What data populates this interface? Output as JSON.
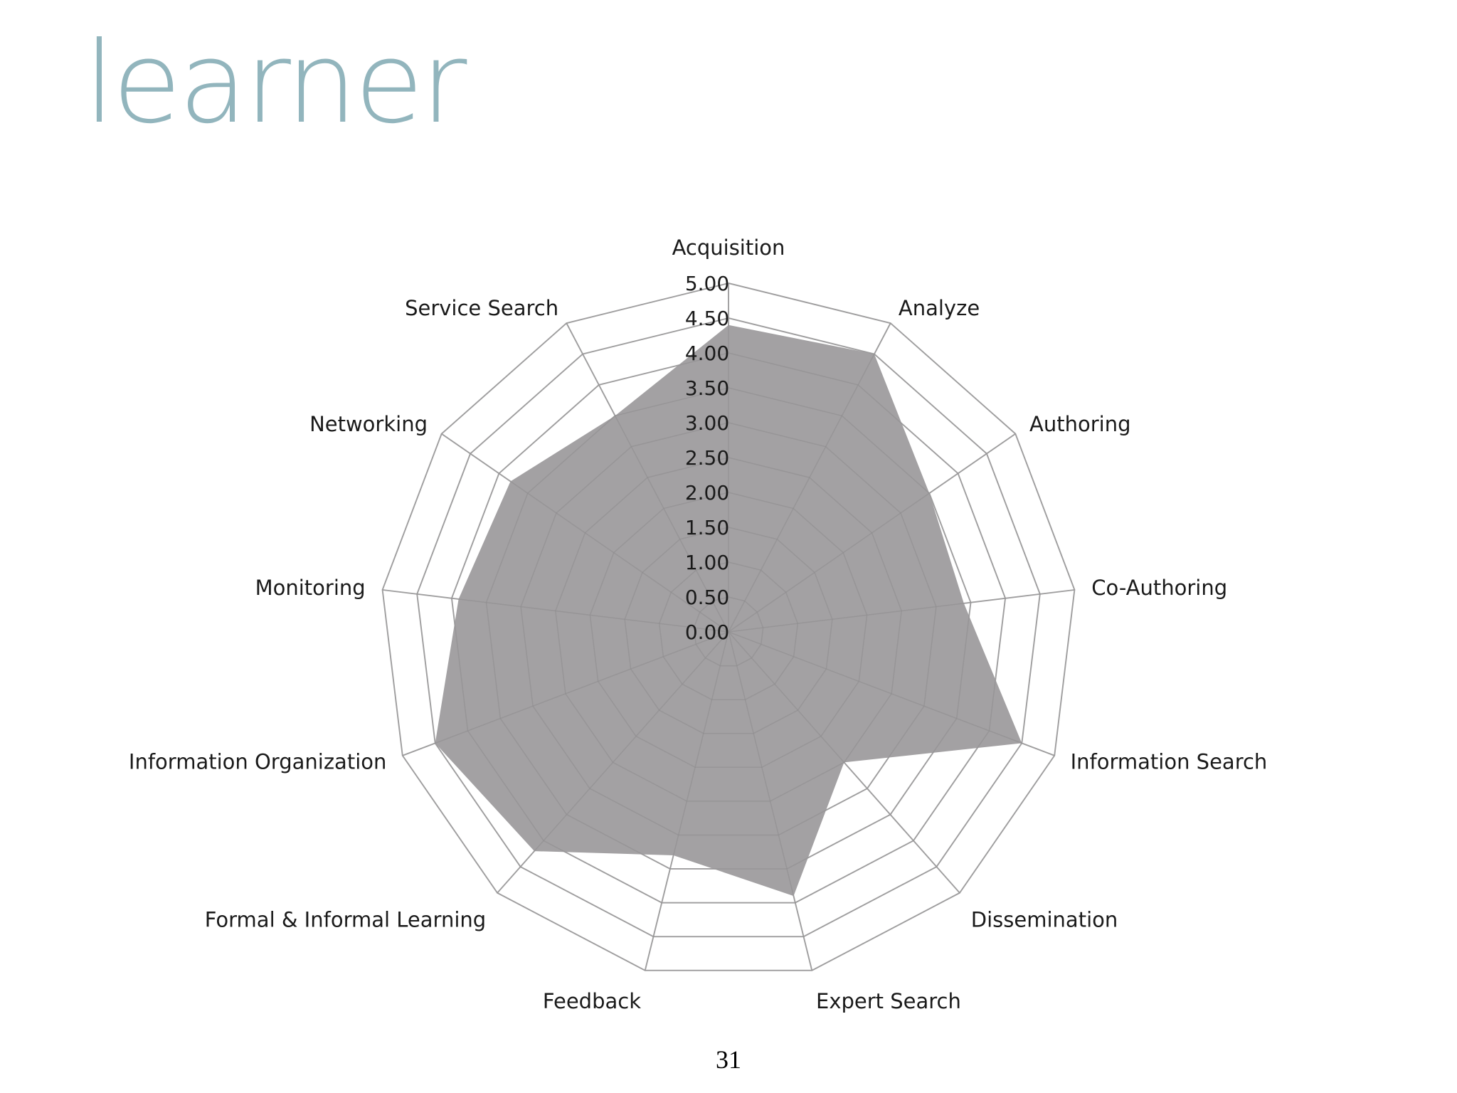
{
  "slide": {
    "title": "learner",
    "page_number": "31"
  },
  "chart_data": {
    "type": "radar",
    "title": "",
    "categories": [
      "Acquisition",
      "Analyze",
      "Authoring",
      "Co-Authoring",
      "Information Search",
      "Dissemination",
      "Expert Search",
      "Feedback",
      "Formal & Informal Learning",
      "Information Organization",
      "Monitoring",
      "Networking",
      "Service Search"
    ],
    "series": [
      {
        "values": [
          4.4,
          4.5,
          3.5,
          3.4,
          4.5,
          2.5,
          3.9,
          3.3,
          4.2,
          4.5,
          3.9,
          3.8,
          3.5
        ],
        "color": "#a3a1a3"
      }
    ],
    "rlim": [
      0,
      5
    ],
    "ticks": [
      "0.00",
      "0.50",
      "1.00",
      "1.50",
      "2.00",
      "2.50",
      "3.00",
      "3.50",
      "4.00",
      "4.50",
      "5.00"
    ],
    "grid": true,
    "grid_color": "#b3b3b3"
  }
}
